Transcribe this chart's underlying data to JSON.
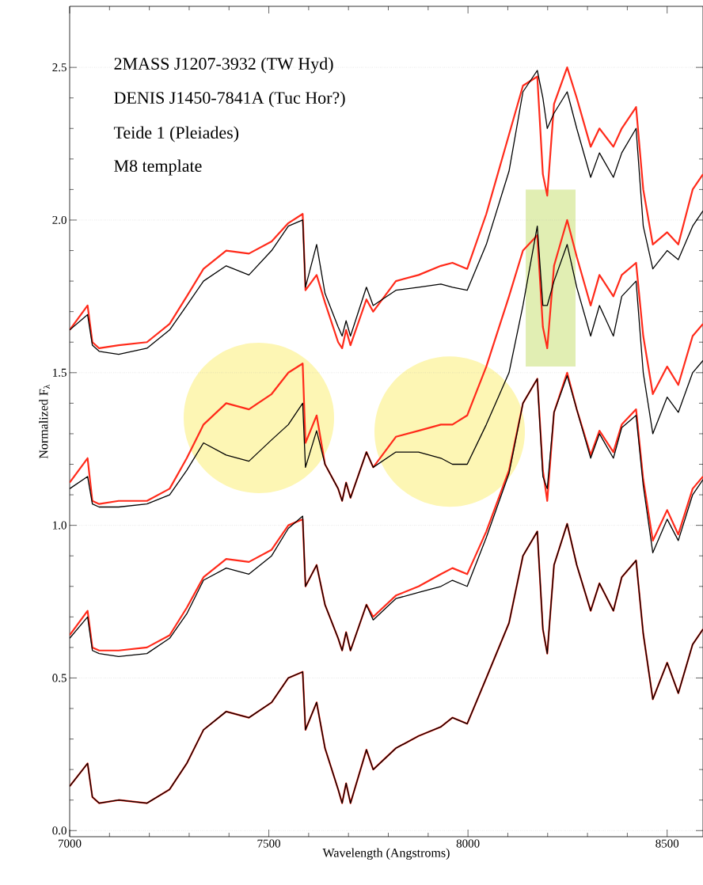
{
  "chart_data": {
    "type": "line",
    "xlabel": "Wavelength (Angstroms)",
    "ylabel": "Normalized F$_{λ}$",
    "annotations": [
      "2MASS J1207-3932 (TW Hyd)",
      "DENIS J1450-7841A (Tuc Hor?)",
      "Teide 1 (Pleiades)",
      "M8 template"
    ],
    "xlim": [
      7000,
      8590
    ],
    "ylim": [
      -0.02,
      2.7
    ],
    "xticks": [
      7000,
      7500,
      8000,
      8500
    ],
    "yticks": [
      {
        "value": 0,
        "label": "0.0"
      },
      0.5,
      {
        "value": 1,
        "label": "1.0"
      },
      1.5,
      {
        "value": 2,
        "label": "2.0"
      },
      2.5
    ],
    "grid": "y",
    "line_style": "solid",
    "x": [
      7000,
      7045,
      7057,
      7074,
      7123,
      7194,
      7251,
      7294,
      7336,
      7393,
      7450,
      7507,
      7549,
      7585,
      7592,
      7620,
      7641,
      7674,
      7684,
      7694,
      7705,
      7745,
      7762,
      7819,
      7876,
      7932,
      7961,
      7998,
      8046,
      8103,
      8138,
      8174,
      8188,
      8199,
      8216,
      8249,
      8273,
      8308,
      8330,
      8365,
      8386,
      8422,
      8440,
      8464,
      8500,
      8528,
      8564,
      8590
    ],
    "series": [
      {
        "color": "#ff2a1a",
        "values": [
          1.64,
          1.72,
          1.6,
          1.58,
          1.59,
          1.6,
          1.66,
          1.75,
          1.84,
          1.9,
          1.89,
          1.93,
          1.99,
          2.02,
          1.77,
          1.82,
          1.73,
          1.6,
          1.58,
          1.64,
          1.59,
          1.74,
          1.7,
          1.8,
          1.82,
          1.85,
          1.86,
          1.84,
          2.02,
          2.28,
          2.44,
          2.47,
          2.15,
          2.08,
          2.38,
          2.5,
          2.4,
          2.24,
          2.3,
          2.24,
          2.3,
          2.37,
          2.1,
          1.92,
          1.96,
          1.92,
          2.1,
          2.15
        ]
      },
      {
        "color": "#000000",
        "values": [
          1.64,
          1.69,
          1.59,
          1.57,
          1.56,
          1.58,
          1.64,
          1.72,
          1.8,
          1.85,
          1.82,
          1.9,
          1.98,
          2.0,
          1.78,
          1.92,
          1.76,
          1.65,
          1.62,
          1.67,
          1.62,
          1.78,
          1.72,
          1.77,
          1.78,
          1.79,
          1.78,
          1.77,
          1.92,
          2.16,
          2.42,
          2.49,
          2.4,
          2.3,
          2.35,
          2.42,
          2.3,
          2.14,
          2.22,
          2.14,
          2.22,
          2.3,
          1.98,
          1.84,
          1.9,
          1.87,
          1.98,
          2.03
        ]
      },
      {
        "color": "#ff2a1a",
        "values": [
          1.14,
          1.22,
          1.08,
          1.07,
          1.08,
          1.08,
          1.12,
          1.22,
          1.33,
          1.4,
          1.38,
          1.43,
          1.5,
          1.53,
          1.27,
          1.36,
          1.2,
          1.12,
          1.08,
          1.14,
          1.09,
          1.24,
          1.19,
          1.29,
          1.31,
          1.33,
          1.33,
          1.36,
          1.52,
          1.75,
          1.9,
          1.95,
          1.65,
          1.58,
          1.85,
          2.0,
          1.88,
          1.72,
          1.82,
          1.75,
          1.82,
          1.86,
          1.62,
          1.43,
          1.52,
          1.46,
          1.62,
          1.66
        ]
      },
      {
        "color": "#000000",
        "values": [
          1.12,
          1.16,
          1.07,
          1.06,
          1.06,
          1.07,
          1.1,
          1.18,
          1.27,
          1.23,
          1.21,
          1.28,
          1.33,
          1.4,
          1.19,
          1.31,
          1.2,
          1.12,
          1.08,
          1.14,
          1.09,
          1.24,
          1.19,
          1.24,
          1.24,
          1.22,
          1.2,
          1.2,
          1.33,
          1.5,
          1.72,
          1.98,
          1.72,
          1.72,
          1.8,
          1.92,
          1.78,
          1.62,
          1.72,
          1.62,
          1.75,
          1.8,
          1.5,
          1.3,
          1.42,
          1.37,
          1.5,
          1.54
        ]
      },
      {
        "color": "#ff2a1a",
        "values": [
          0.64,
          0.72,
          0.6,
          0.59,
          0.59,
          0.6,
          0.64,
          0.73,
          0.83,
          0.89,
          0.88,
          0.92,
          1.0,
          1.02,
          0.8,
          0.87,
          0.74,
          0.63,
          0.59,
          0.65,
          0.59,
          0.74,
          0.7,
          0.77,
          0.8,
          0.84,
          0.86,
          0.84,
          0.98,
          1.18,
          1.4,
          1.48,
          1.18,
          1.08,
          1.37,
          1.5,
          1.38,
          1.23,
          1.31,
          1.24,
          1.33,
          1.38,
          1.15,
          0.95,
          1.05,
          0.97,
          1.12,
          1.16
        ]
      },
      {
        "color": "#000000",
        "values": [
          0.63,
          0.7,
          0.59,
          0.58,
          0.57,
          0.58,
          0.63,
          0.71,
          0.82,
          0.86,
          0.84,
          0.9,
          0.99,
          1.03,
          0.8,
          0.87,
          0.74,
          0.63,
          0.59,
          0.65,
          0.59,
          0.74,
          0.69,
          0.76,
          0.78,
          0.8,
          0.82,
          0.8,
          0.96,
          1.17,
          1.4,
          1.48,
          1.16,
          1.12,
          1.37,
          1.49,
          1.38,
          1.22,
          1.3,
          1.22,
          1.32,
          1.36,
          1.13,
          0.91,
          1.02,
          0.95,
          1.1,
          1.15
        ]
      },
      {
        "color": "#ff2a1a",
        "values": [
          0.145,
          0.22,
          0.11,
          0.09,
          0.1,
          0.09,
          0.135,
          0.22,
          0.33,
          0.39,
          0.37,
          0.42,
          0.5,
          0.52,
          0.33,
          0.42,
          0.27,
          0.135,
          0.09,
          0.155,
          0.09,
          0.265,
          0.2,
          0.27,
          0.31,
          0.34,
          0.37,
          0.35,
          0.5,
          0.68,
          0.9,
          0.98,
          0.66,
          0.58,
          0.87,
          1.005,
          0.87,
          0.72,
          0.81,
          0.72,
          0.83,
          0.885,
          0.645,
          0.43,
          0.55,
          0.45,
          0.61,
          0.66
        ]
      },
      {
        "color": "#000000",
        "values": [
          0.145,
          0.22,
          0.11,
          0.09,
          0.1,
          0.09,
          0.135,
          0.22,
          0.33,
          0.39,
          0.37,
          0.42,
          0.5,
          0.52,
          0.33,
          0.42,
          0.27,
          0.135,
          0.09,
          0.155,
          0.09,
          0.265,
          0.2,
          0.27,
          0.31,
          0.34,
          0.37,
          0.35,
          0.5,
          0.68,
          0.9,
          0.98,
          0.66,
          0.58,
          0.87,
          1.005,
          0.87,
          0.72,
          0.81,
          0.72,
          0.83,
          0.885,
          0.645,
          0.43,
          0.55,
          0.45,
          0.61,
          0.66
        ]
      }
    ]
  }
}
